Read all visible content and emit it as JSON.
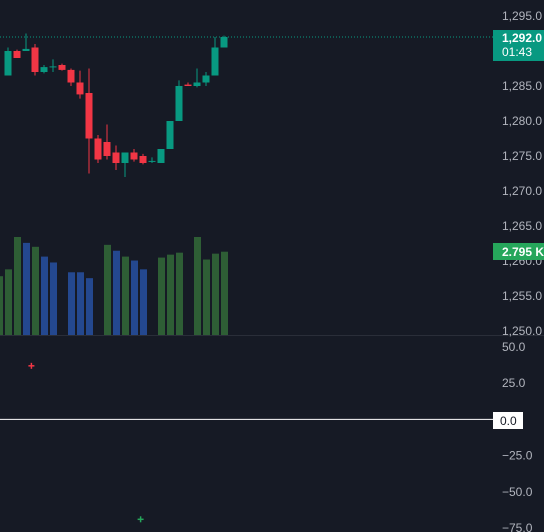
{
  "colors": {
    "background": "#161a25",
    "up": "#089981",
    "down": "#f23645",
    "volume_up": "#2e5e35",
    "volume_down": "#24488f",
    "last_price_line": "#089981",
    "zero_line": "#ffffff",
    "divider": "#2a2e39",
    "osc_up": "#26a65b",
    "osc_down": "#f23645"
  },
  "price_badge": {
    "price": "1,292.0",
    "countdown": "01:43"
  },
  "volume_badge": {
    "value": "2.795 K"
  },
  "zero_badge": {
    "value": "0.0"
  },
  "chart_data": [
    {
      "type": "candlestick",
      "yaxis_ticks": [
        "1,295.0",
        "1,290.0",
        "1,285.0",
        "1,280.0",
        "1,275.0",
        "1,270.0",
        "1,265.0",
        "1,260.0",
        "1,255.0",
        "1,250.0"
      ],
      "ylim": [
        1250,
        1296
      ],
      "last_price": 1292.0,
      "candles": [
        {
          "o": 1286.5,
          "h": 1290.5,
          "l": 1286.5,
          "c": 1290.0
        },
        {
          "o": 1290.0,
          "h": 1290.2,
          "l": 1289.0,
          "c": 1289.0
        },
        {
          "o": 1290.0,
          "h": 1292.5,
          "l": 1290.0,
          "c": 1290.3
        },
        {
          "o": 1290.5,
          "h": 1291.0,
          "l": 1286.5,
          "c": 1287.0
        },
        {
          "o": 1287.0,
          "h": 1288.0,
          "l": 1286.8,
          "c": 1287.7
        },
        {
          "o": 1287.7,
          "h": 1288.8,
          "l": 1287.0,
          "c": 1287.8
        },
        {
          "o": 1288.0,
          "h": 1288.2,
          "l": 1287.2,
          "c": 1287.3
        },
        {
          "o": 1287.3,
          "h": 1287.5,
          "l": 1285.0,
          "c": 1285.5
        },
        {
          "o": 1285.5,
          "h": 1287.2,
          "l": 1283.2,
          "c": 1283.8
        },
        {
          "o": 1284.0,
          "h": 1287.5,
          "l": 1272.5,
          "c": 1277.5
        },
        {
          "o": 1277.5,
          "h": 1278.0,
          "l": 1274.0,
          "c": 1274.5
        },
        {
          "o": 1277.0,
          "h": 1279.5,
          "l": 1274.5,
          "c": 1275.0
        },
        {
          "o": 1275.5,
          "h": 1276.5,
          "l": 1273.0,
          "c": 1274.0
        },
        {
          "o": 1274.0,
          "h": 1275.5,
          "l": 1272.0,
          "c": 1275.5
        },
        {
          "o": 1275.5,
          "h": 1276.0,
          "l": 1274.2,
          "c": 1274.5
        },
        {
          "o": 1275.0,
          "h": 1275.3,
          "l": 1273.8,
          "c": 1274.0
        },
        {
          "o": 1274.2,
          "h": 1274.8,
          "l": 1274.0,
          "c": 1274.3
        },
        {
          "o": 1274.0,
          "h": 1276.0,
          "l": 1274.0,
          "c": 1276.0
        },
        {
          "o": 1276.0,
          "h": 1280.0,
          "l": 1276.0,
          "c": 1280.0
        },
        {
          "o": 1280.0,
          "h": 1285.8,
          "l": 1280.0,
          "c": 1285.0
        },
        {
          "o": 1285.2,
          "h": 1285.5,
          "l": 1285.0,
          "c": 1285.0
        },
        {
          "o": 1285.0,
          "h": 1287.5,
          "l": 1284.8,
          "c": 1285.5
        },
        {
          "o": 1285.5,
          "h": 1287.0,
          "l": 1285.0,
          "c": 1286.5
        },
        {
          "o": 1286.5,
          "h": 1292.0,
          "l": 1286.5,
          "c": 1290.5
        },
        {
          "o": 1290.5,
          "h": 1292.2,
          "l": 1290.5,
          "c": 1292.0
        }
      ],
      "volume_relative": [
        0.6,
        0.67,
        1.0,
        0.94,
        0.9,
        0.8,
        0.74,
        0.0,
        0.64,
        0.64,
        0.58,
        0.0,
        0.92,
        0.86,
        0.8,
        0.76,
        0.67,
        0.0,
        0.79,
        0.82,
        0.84,
        0.0,
        1.0,
        0.77,
        0.83,
        0.85
      ],
      "volume_colors": [
        "up",
        "up",
        "up",
        "down",
        "up",
        "down",
        "down",
        "none",
        "down",
        "down",
        "down",
        "none",
        "up",
        "down",
        "up",
        "down",
        "down",
        "none",
        "up",
        "up",
        "up",
        "none",
        "up",
        "up",
        "up",
        "up"
      ]
    },
    {
      "type": "scatter",
      "yaxis_ticks": [
        "50.0",
        "25.0",
        "0.0",
        "−25.0",
        "−50.0",
        "−75.0"
      ],
      "ylim": [
        -75,
        50
      ],
      "points": [
        {
          "x_index": 3,
          "y": 37,
          "color": "down"
        },
        {
          "x_index": 17,
          "y": -69,
          "color": "up"
        }
      ]
    }
  ]
}
